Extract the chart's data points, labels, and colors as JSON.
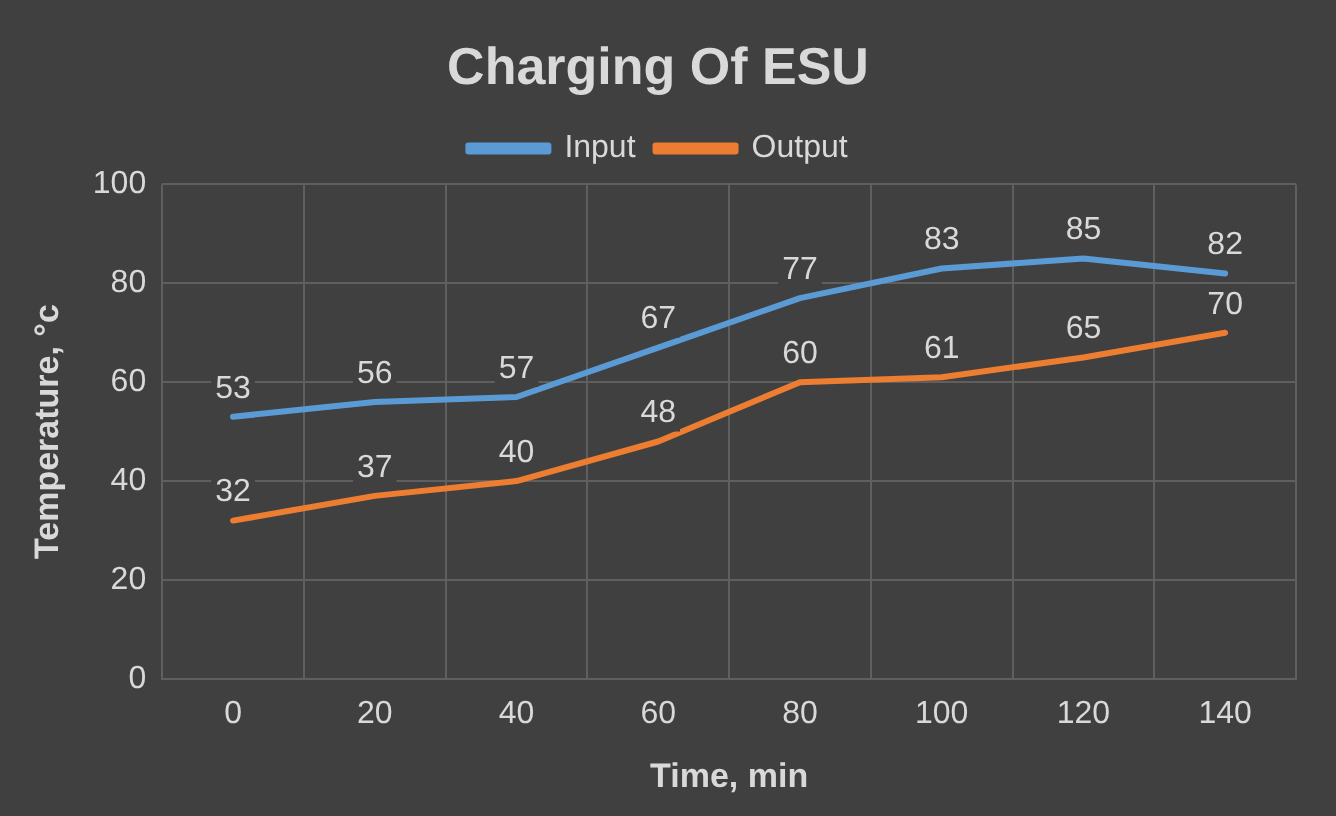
{
  "chart_data": {
    "type": "line",
    "title": "Charging Of ESU",
    "xlabel": "Time, min",
    "ylabel": "Temperature, °c",
    "categories": [
      "0",
      "20",
      "40",
      "60",
      "80",
      "100",
      "120",
      "140"
    ],
    "series": [
      {
        "name": "Input",
        "color": "#5b9bd5",
        "values": [
          53,
          56,
          57,
          67,
          77,
          83,
          85,
          82
        ]
      },
      {
        "name": "Output",
        "color": "#ed7d31",
        "values": [
          32,
          37,
          40,
          48,
          60,
          61,
          65,
          70
        ]
      }
    ],
    "ylim": [
      0,
      100
    ],
    "yticks": [
      0,
      20,
      40,
      60,
      80,
      100
    ],
    "grid": true,
    "legend": "top",
    "data_labels": true,
    "marker": "none",
    "line_style": "solid"
  }
}
